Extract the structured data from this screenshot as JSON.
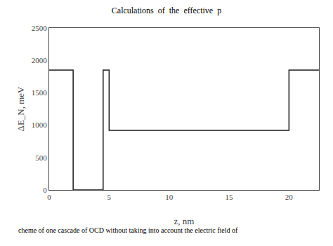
{
  "chart_data": {
    "type": "line",
    "title": "Calculations  of  the  effective  p",
    "xlabel": "z, nm",
    "ylabel": "ΔE_N, meV",
    "annotations": [
      "cheme of one cascade of OCD without taking into account the electric field of"
    ],
    "x": [
      0,
      2,
      2,
      4.5,
      4.5,
      5,
      5,
      20,
      20,
      22.5
    ],
    "values": [
      1850,
      1850,
      0,
      0,
      1850,
      1850,
      920,
      920,
      1850,
      1850
    ],
    "color": "#1a1a1a",
    "xlim": [
      0,
      22.5
    ],
    "ylim": [
      0,
      2500
    ],
    "xticks": [
      0,
      5,
      10,
      15,
      20
    ],
    "yticks": [
      0,
      500,
      1000,
      1500,
      2000,
      2500
    ],
    "grid": false
  }
}
